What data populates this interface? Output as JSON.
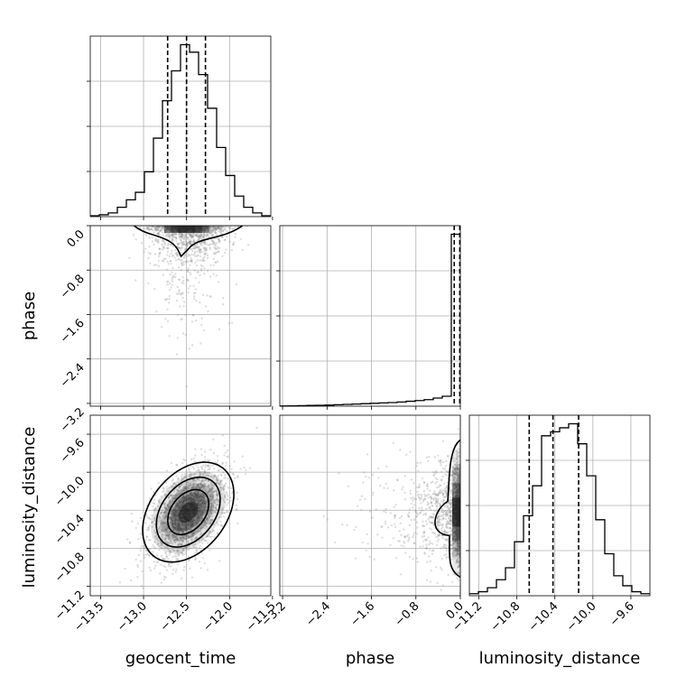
{
  "chart_data": {
    "type": "corner",
    "parameters": [
      "geocent_time",
      "phase",
      "luminosity_distance"
    ],
    "ranges": {
      "geocent_time": [
        -13.62,
        -11.52
      ],
      "phase": [
        -3.25,
        0.0
      ],
      "luminosity_distance": [
        -11.3,
        -9.4
      ]
    },
    "ticks": {
      "geocent_time": [
        "−13.5",
        "−13.0",
        "−12.5",
        "−12.0",
        "−11.5"
      ],
      "phase": [
        "−3.2",
        "−2.4",
        "−1.6",
        "−0.8",
        "0.0"
      ],
      "luminosity_distance": [
        "−11.2",
        "−10.8",
        "−10.4",
        "−10.0",
        "−9.6"
      ]
    },
    "tick_values": {
      "geocent_time": [
        -13.5,
        -13.0,
        -12.5,
        -12.0,
        -11.5
      ],
      "phase": [
        -3.2,
        -2.4,
        -1.6,
        -0.8,
        0.0
      ],
      "luminosity_distance": [
        -11.2,
        -10.8,
        -10.4,
        -10.0,
        -9.6
      ]
    },
    "quantiles": {
      "geocent_time": [
        -12.72,
        -12.5,
        -12.28
      ],
      "phase": [
        -0.11,
        -0.01
      ],
      "luminosity_distance": [
        -10.67,
        -10.42,
        -10.15
      ]
    },
    "histograms": {
      "geocent_time": [
        0.005,
        0.01,
        0.02,
        0.05,
        0.09,
        0.13,
        0.24,
        0.42,
        0.62,
        0.78,
        0.92,
        0.88,
        0.76,
        0.58,
        0.37,
        0.22,
        0.11,
        0.05,
        0.02,
        0.005
      ],
      "phase": [
        0.001,
        0.002,
        0.003,
        0.004,
        0.005,
        0.006,
        0.008,
        0.01,
        0.012,
        0.014,
        0.016,
        0.018,
        0.02,
        0.023,
        0.027,
        0.031,
        0.036,
        0.045,
        0.055,
        0.95
      ],
      "luminosity_distance": [
        0.01,
        0.02,
        0.04,
        0.08,
        0.14,
        0.27,
        0.4,
        0.55,
        0.8,
        0.82,
        0.84,
        0.86,
        0.76,
        0.6,
        0.38,
        0.21,
        0.1,
        0.05,
        0.02,
        0.01
      ]
    },
    "posterior": {
      "geocent_time": {
        "mean": -12.48,
        "sd": 0.22
      },
      "luminosity_distance": {
        "mean": -10.42,
        "sd": 0.24
      },
      "correlation": 0.5
    },
    "grid": true,
    "colors": {
      "points": "#888888",
      "contour": "#000000",
      "quantile": "#000000"
    }
  }
}
